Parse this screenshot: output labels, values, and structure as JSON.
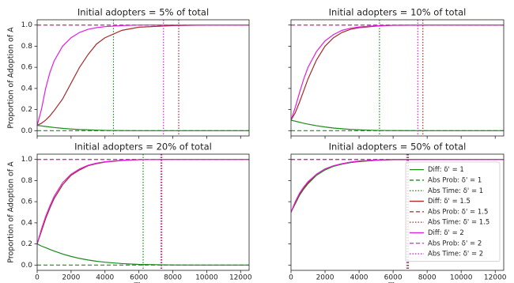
{
  "chart_data": [
    {
      "type": "line",
      "title": "Initial adopters = 5% of total",
      "ylabel": "Proportion of Adoption of A",
      "show_xtick_labels": false,
      "show_ytick_labels": true,
      "xlim": [
        0,
        12500
      ],
      "ylim": [
        -0.05,
        1.05
      ],
      "xticks": [
        0,
        2000,
        4000,
        6000,
        8000,
        10000,
        12000
      ],
      "yticks": [
        {
          "value": 0,
          "label": "0.0"
        },
        0.2,
        0.4,
        0.6,
        0.8,
        {
          "value": 1,
          "label": "1.0"
        }
      ],
      "x": [
        0,
        250,
        500,
        750,
        1000,
        1500,
        2000,
        2500,
        3000,
        3500,
        4000,
        5000,
        6000,
        8000,
        10000,
        12500
      ],
      "series": [
        {
          "color": "#1a8a1a",
          "linestyle": "solid",
          "values": [
            0.05,
            0.045,
            0.04,
            0.035,
            0.03,
            0.022,
            0.016,
            0.011,
            0.008,
            0.005,
            0.003,
            0.001,
            0,
            0,
            0,
            0
          ]
        },
        {
          "color": "#1a8a1a",
          "linestyle": "dashed",
          "y": 0
        },
        {
          "color": "#1a8a1a",
          "linestyle": "dotted",
          "x": 4500
        },
        {
          "color": "#a52a2a",
          "linestyle": "solid",
          "values": [
            0.05,
            0.07,
            0.1,
            0.14,
            0.19,
            0.3,
            0.45,
            0.6,
            0.72,
            0.82,
            0.88,
            0.95,
            0.98,
            0.995,
            1,
            1
          ]
        },
        {
          "color": "#a52a2a",
          "linestyle": "dashed",
          "y": 1
        },
        {
          "color": "#a52a2a",
          "linestyle": "dotted",
          "x": 8350
        },
        {
          "color": "#e020e0",
          "linestyle": "solid",
          "values": [
            0.05,
            0.2,
            0.4,
            0.55,
            0.66,
            0.8,
            0.88,
            0.93,
            0.96,
            0.975,
            0.985,
            0.995,
            1,
            1,
            1,
            1
          ]
        },
        {
          "color": "#e020e0",
          "linestyle": "dashed",
          "y": 1
        },
        {
          "color": "#e020e0",
          "linestyle": "dotted",
          "x": 7450
        }
      ]
    },
    {
      "type": "line",
      "title": "Initial adopters = 10% of total",
      "show_xtick_labels": false,
      "show_ytick_labels": false,
      "xlim": [
        0,
        12500
      ],
      "ylim": [
        -0.05,
        1.05
      ],
      "xticks": [
        0,
        2000,
        4000,
        6000,
        8000,
        10000,
        12000
      ],
      "yticks": [
        0,
        0.2,
        0.4,
        0.6,
        0.8,
        1
      ],
      "x": [
        0,
        250,
        500,
        750,
        1000,
        1500,
        2000,
        2500,
        3000,
        3500,
        4000,
        5000,
        6000,
        8000,
        10000,
        12500
      ],
      "series": [
        {
          "color": "#1a8a1a",
          "linestyle": "solid",
          "values": [
            0.1,
            0.09,
            0.08,
            0.07,
            0.062,
            0.047,
            0.035,
            0.025,
            0.018,
            0.012,
            0.008,
            0.003,
            0.001,
            0,
            0,
            0
          ]
        },
        {
          "color": "#1a8a1a",
          "linestyle": "dashed",
          "y": 0
        },
        {
          "color": "#1a8a1a",
          "linestyle": "dotted",
          "x": 5200
        },
        {
          "color": "#a52a2a",
          "linestyle": "solid",
          "values": [
            0.1,
            0.17,
            0.27,
            0.38,
            0.49,
            0.67,
            0.8,
            0.88,
            0.93,
            0.96,
            0.975,
            0.99,
            0.997,
            1,
            1,
            1
          ]
        },
        {
          "color": "#a52a2a",
          "linestyle": "dashed",
          "y": 1
        },
        {
          "color": "#a52a2a",
          "linestyle": "dotted",
          "x": 7750
        },
        {
          "color": "#e020e0",
          "linestyle": "solid",
          "values": [
            0.1,
            0.22,
            0.36,
            0.49,
            0.6,
            0.75,
            0.85,
            0.91,
            0.95,
            0.97,
            0.982,
            0.994,
            0.998,
            1,
            1,
            1
          ]
        },
        {
          "color": "#e020e0",
          "linestyle": "dashed",
          "y": 1
        },
        {
          "color": "#e020e0",
          "linestyle": "dotted",
          "x": 7450
        }
      ]
    },
    {
      "type": "line",
      "title": "Initial adopters = 20% of total",
      "ylabel": "Proportion of Adoption of A",
      "xlabel": "Time",
      "show_xtick_labels": true,
      "show_ytick_labels": true,
      "xlim": [
        0,
        12500
      ],
      "ylim": [
        -0.05,
        1.05
      ],
      "xticks": [
        0,
        2000,
        4000,
        6000,
        8000,
        10000,
        12000
      ],
      "yticks": [
        {
          "value": 0,
          "label": "0.0"
        },
        0.2,
        0.4,
        0.6,
        0.8,
        {
          "value": 1,
          "label": "1.0"
        }
      ],
      "x": [
        0,
        250,
        500,
        750,
        1000,
        1500,
        2000,
        2500,
        3000,
        3500,
        4000,
        5000,
        6000,
        8000,
        10000,
        12500
      ],
      "series": [
        {
          "color": "#1a8a1a",
          "linestyle": "solid",
          "values": [
            0.2,
            0.18,
            0.165,
            0.148,
            0.133,
            0.105,
            0.082,
            0.063,
            0.048,
            0.036,
            0.027,
            0.014,
            0.006,
            0.001,
            0,
            0
          ]
        },
        {
          "color": "#1a8a1a",
          "linestyle": "dashed",
          "y": 0
        },
        {
          "color": "#1a8a1a",
          "linestyle": "dotted",
          "x": 6250
        },
        {
          "color": "#a52a2a",
          "linestyle": "solid",
          "values": [
            0.2,
            0.32,
            0.44,
            0.54,
            0.63,
            0.76,
            0.85,
            0.9,
            0.94,
            0.96,
            0.975,
            0.99,
            0.997,
            1,
            1,
            1
          ]
        },
        {
          "color": "#a52a2a",
          "linestyle": "dashed",
          "y": 1
        },
        {
          "color": "#a52a2a",
          "linestyle": "dotted",
          "x": 7350
        },
        {
          "color": "#e020e0",
          "linestyle": "solid",
          "values": [
            0.2,
            0.34,
            0.46,
            0.56,
            0.65,
            0.78,
            0.86,
            0.91,
            0.945,
            0.965,
            0.978,
            0.992,
            0.998,
            1,
            1,
            1
          ]
        },
        {
          "color": "#e020e0",
          "linestyle": "dashed",
          "y": 1
        },
        {
          "color": "#e020e0",
          "linestyle": "dotted",
          "x": 7300
        }
      ]
    },
    {
      "type": "line",
      "title": "Initial adopters = 50% of total",
      "xlabel": "Time",
      "legend": "upper right",
      "show_xtick_labels": true,
      "show_ytick_labels": false,
      "xlim": [
        0,
        12500
      ],
      "ylim": [
        -0.05,
        1.05
      ],
      "xticks": [
        0,
        2000,
        4000,
        6000,
        8000,
        10000,
        12000
      ],
      "yticks": [
        0,
        0.2,
        0.4,
        0.6,
        0.8,
        1
      ],
      "x": [
        0,
        250,
        500,
        750,
        1000,
        1500,
        2000,
        2500,
        3000,
        3500,
        4000,
        5000,
        6000,
        8000,
        10000,
        12500
      ],
      "series": [
        {
          "name": "Diff: δ' = 1",
          "color": "#1a8a1a",
          "linestyle": "solid",
          "values": [
            0.5,
            0.58,
            0.66,
            0.72,
            0.77,
            0.85,
            0.9,
            0.935,
            0.955,
            0.97,
            0.98,
            0.992,
            0.997,
            1,
            1,
            1
          ]
        },
        {
          "name": "Abs Prob: δ' = 1",
          "color": "#1a8a1a",
          "linestyle": "dashed",
          "y": 1
        },
        {
          "name": "Abs Time: δ' = 1",
          "color": "#1a8a1a",
          "linestyle": "dotted",
          "x": 6850
        },
        {
          "name": "Diff: δ' = 1.5",
          "color": "#a52a2a",
          "linestyle": "solid",
          "values": [
            0.5,
            0.59,
            0.67,
            0.73,
            0.78,
            0.86,
            0.91,
            0.94,
            0.96,
            0.973,
            0.982,
            0.993,
            0.998,
            1,
            1,
            1
          ]
        },
        {
          "name": "Abs Prob: δ' = 1.5",
          "color": "#a52a2a",
          "linestyle": "dashed",
          "y": 1
        },
        {
          "name": "Abs Time: δ' = 1.5",
          "color": "#a52a2a",
          "linestyle": "dotted",
          "x": 6900
        },
        {
          "name": "Diff: δ' = 2",
          "color": "#e020e0",
          "linestyle": "solid",
          "values": [
            0.5,
            0.6,
            0.68,
            0.74,
            0.79,
            0.86,
            0.91,
            0.94,
            0.96,
            0.975,
            0.985,
            0.995,
            1,
            1,
            1,
            1
          ]
        },
        {
          "name": "Abs Prob: δ' = 2",
          "color": "#e020e0",
          "linestyle": "dashed",
          "y": 1
        },
        {
          "name": "Abs Time: δ' = 2",
          "color": "#e020e0",
          "linestyle": "dotted",
          "x": 6800
        }
      ]
    }
  ]
}
